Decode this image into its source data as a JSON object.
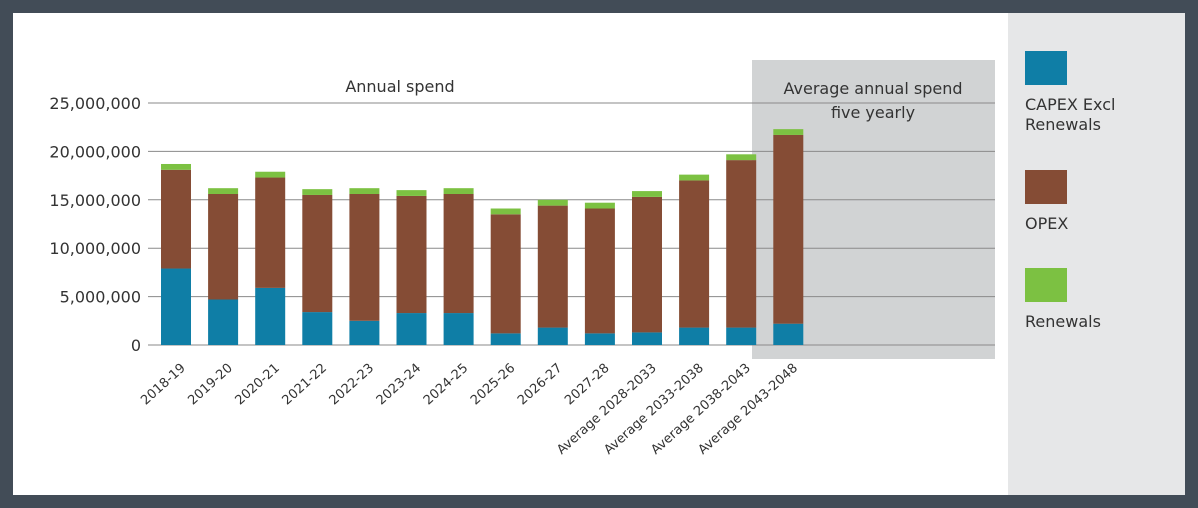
{
  "colors": {
    "capex": "#0f7ea6",
    "opex": "#854c35",
    "renewals": "#7cc142",
    "shade": "#d1d3d4",
    "grid": "#8a8a8a",
    "text": "#333333"
  },
  "chart_data": {
    "type": "bar",
    "stacked": true,
    "categories": [
      "2018-19",
      "2019-20",
      "2020-21",
      "2021-22",
      "2022-23",
      "2023-24",
      "2024-25",
      "2025-26",
      "2026-27",
      "2027-28",
      "Average 2028-2033",
      "Average 2033-2038",
      "Average 2038-2043",
      "Average 2043-2048"
    ],
    "series": [
      {
        "name": "CAPEX Excl Renewals",
        "color_key": "capex",
        "values": [
          7900000,
          4700000,
          5900000,
          3400000,
          2500000,
          3300000,
          3300000,
          1200000,
          1800000,
          1200000,
          1300000,
          1800000,
          1800000,
          2200000
        ]
      },
      {
        "name": "OPEX",
        "color_key": "opex",
        "values": [
          10200000,
          10900000,
          11400000,
          12100000,
          13100000,
          12100000,
          12300000,
          12300000,
          12600000,
          12900000,
          14000000,
          15200000,
          17300000,
          19500000
        ]
      },
      {
        "name": "Renewals",
        "color_key": "renewals",
        "values": [
          600000,
          600000,
          600000,
          600000,
          600000,
          600000,
          600000,
          600000,
          600000,
          600000,
          600000,
          600000,
          600000,
          600000
        ]
      }
    ],
    "ylim": [
      0,
      25000000
    ],
    "yticks": [
      0,
      5000000,
      10000000,
      15000000,
      20000000,
      25000000
    ],
    "ytick_labels": [
      "0",
      "5,000,000",
      "10,000,000",
      "15,000,000",
      "20,000,000",
      "25,000,000"
    ],
    "grid": true,
    "annotations": {
      "annual": "Annual spend",
      "average_line1": "Average annual spend",
      "average_line2": "five yearly"
    },
    "legend_position": "right"
  },
  "legend": [
    {
      "label_line1": "CAPEX Excl",
      "label_line2": "Renewals",
      "color_key": "capex"
    },
    {
      "label_line1": "OPEX",
      "label_line2": "",
      "color_key": "opex"
    },
    {
      "label_line1": "Renewals",
      "label_line2": "",
      "color_key": "renewals"
    }
  ]
}
